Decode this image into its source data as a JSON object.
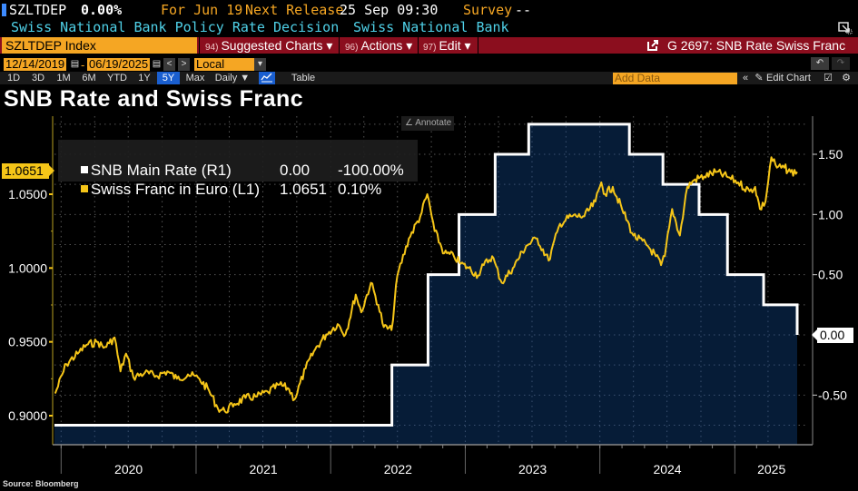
{
  "header": {
    "ticker": "SZLTDEP",
    "value": "0.00%",
    "for_label": "For Jun 19",
    "next_release_label": "Next Release",
    "next_release_value": "25 Sep 09:30",
    "survey_label": "Survey",
    "survey_value": "--",
    "description": "Swiss National Bank Policy Rate Decision",
    "source_name": "Swiss National Bank"
  },
  "commandbar": {
    "security": "SZLTDEP Index",
    "buttons": [
      {
        "num": "94)",
        "label": "Suggested Charts ▾"
      },
      {
        "num": "96)",
        "label": "Actions ▾"
      },
      {
        "num": "97)",
        "label": "Edit ▾"
      }
    ],
    "chart_id": "G 2697: SNB Rate Swiss Franc"
  },
  "daterange": {
    "start": "12/14/2019",
    "end": "06/19/2025",
    "currency": "Local CCY",
    "separator": "-"
  },
  "periods": [
    "1D",
    "3D",
    "1M",
    "6M",
    "YTD",
    "1Y",
    "5Y",
    "Max"
  ],
  "active_period": "5Y",
  "frequency": "Daily ▼",
  "table_label": "Table",
  "add_data_placeholder": "Add Data",
  "edit_chart_label": "Edit Chart",
  "annotate_label": "Annotate",
  "legend": [
    {
      "name": "SNB Main Rate (R1)",
      "last": "0.00",
      "change": "-100.00%",
      "color": "#ffffff"
    },
    {
      "name": "Swiss Franc in Euro (L1)",
      "last": "1.0651",
      "change": "0.10%",
      "color": "#f5c518"
    }
  ],
  "last_left": "1.0651",
  "last_right": "0.00",
  "source": "Source: Bloomberg",
  "colors": {
    "accent": "#f5a623",
    "bar_red": "#8b0e1e",
    "area_fill": "#061d3a",
    "franc_line": "#f5c518",
    "rate_line": "#ffffff"
  },
  "chart_data": {
    "type": "line",
    "title": "SNB Rate and Swiss Franc",
    "x_range": [
      "2019-12-14",
      "2025-06-19"
    ],
    "x_tick_labels": [
      "2020",
      "2021",
      "2022",
      "2023",
      "2024",
      "2025"
    ],
    "left_axis": {
      "label": "Swiss Franc in Euro (L1)",
      "ticks": [
        "0.9000",
        "0.9500",
        "1.0000",
        "1.0500"
      ],
      "range": [
        0.888,
        1.1
      ]
    },
    "right_axis": {
      "label": "SNB Main Rate (R1)",
      "ticks": [
        "-0.50",
        "0.00",
        "0.50",
        "1.00",
        "1.50"
      ],
      "range": [
        -0.82,
        1.87
      ]
    },
    "grid": true,
    "legend_position": "top-left",
    "series": [
      {
        "name": "SNB Main Rate (R1)",
        "axis": "right",
        "style": "step-area",
        "points": [
          [
            "2019-12-14",
            -0.75
          ],
          [
            "2022-06-16",
            -0.25
          ],
          [
            "2022-09-22",
            0.5
          ],
          [
            "2022-12-15",
            1.0
          ],
          [
            "2023-03-23",
            1.5
          ],
          [
            "2023-06-22",
            1.75
          ],
          [
            "2024-03-21",
            1.5
          ],
          [
            "2024-06-20",
            1.25
          ],
          [
            "2024-09-26",
            1.0
          ],
          [
            "2024-12-12",
            0.5
          ],
          [
            "2025-03-20",
            0.25
          ],
          [
            "2025-06-19",
            0.0
          ]
        ]
      },
      {
        "name": "Swiss Franc in Euro (L1)",
        "axis": "left",
        "style": "line",
        "points": [
          [
            "2019-12-16",
            0.915
          ],
          [
            "2020-01-15",
            0.935
          ],
          [
            "2020-02-15",
            0.942
          ],
          [
            "2020-03-10",
            0.948
          ],
          [
            "2020-04-10",
            0.95
          ],
          [
            "2020-04-25",
            0.946
          ],
          [
            "2020-05-10",
            0.949
          ],
          [
            "2020-05-25",
            0.953
          ],
          [
            "2020-06-10",
            0.93
          ],
          [
            "2020-06-25",
            0.942
          ],
          [
            "2020-07-15",
            0.926
          ],
          [
            "2020-08-15",
            0.929
          ],
          [
            "2020-09-15",
            0.927
          ],
          [
            "2020-10-15",
            0.93
          ],
          [
            "2020-11-10",
            0.925
          ],
          [
            "2020-12-10",
            0.928
          ],
          [
            "2021-01-10",
            0.925
          ],
          [
            "2021-02-05",
            0.917
          ],
          [
            "2021-03-01",
            0.905
          ],
          [
            "2021-03-20",
            0.903
          ],
          [
            "2021-04-15",
            0.908
          ],
          [
            "2021-05-15",
            0.912
          ],
          [
            "2021-06-15",
            0.913
          ],
          [
            "2021-07-15",
            0.916
          ],
          [
            "2021-08-15",
            0.921
          ],
          [
            "2021-09-10",
            0.918
          ],
          [
            "2021-09-25",
            0.911
          ],
          [
            "2021-10-25",
            0.932
          ],
          [
            "2021-11-20",
            0.945
          ],
          [
            "2021-12-20",
            0.955
          ],
          [
            "2022-01-20",
            0.962
          ],
          [
            "2022-02-10",
            0.955
          ],
          [
            "2022-03-10",
            0.982
          ],
          [
            "2022-03-25",
            0.97
          ],
          [
            "2022-04-20",
            0.99
          ],
          [
            "2022-05-10",
            0.975
          ],
          [
            "2022-05-25",
            0.96
          ],
          [
            "2022-06-15",
            0.958
          ],
          [
            "2022-07-01",
            0.995
          ],
          [
            "2022-08-01",
            1.02
          ],
          [
            "2022-09-01",
            1.035
          ],
          [
            "2022-09-20",
            1.05
          ],
          [
            "2022-10-10",
            1.025
          ],
          [
            "2022-11-05",
            1.01
          ],
          [
            "2022-12-01",
            1.008
          ],
          [
            "2022-12-20",
            1.003
          ],
          [
            "2023-01-10",
            1.0
          ],
          [
            "2023-02-05",
            0.995
          ],
          [
            "2023-02-20",
            1.002
          ],
          [
            "2023-03-15",
            1.008
          ],
          [
            "2023-04-10",
            0.99
          ],
          [
            "2023-05-10",
            1.0
          ],
          [
            "2023-06-15",
            1.015
          ],
          [
            "2023-07-15",
            1.02
          ],
          [
            "2023-08-15",
            1.005
          ],
          [
            "2023-09-15",
            1.03
          ],
          [
            "2023-10-15",
            1.035
          ],
          [
            "2023-11-20",
            1.035
          ],
          [
            "2023-12-20",
            1.045
          ],
          [
            "2024-01-05",
            1.058
          ],
          [
            "2024-01-15",
            1.05
          ],
          [
            "2024-02-05",
            1.055
          ],
          [
            "2024-03-01",
            1.04
          ],
          [
            "2024-04-01",
            1.022
          ],
          [
            "2024-05-10",
            1.015
          ],
          [
            "2024-06-01",
            1.008
          ],
          [
            "2024-06-15",
            1.002
          ],
          [
            "2024-06-25",
            1.008
          ],
          [
            "2024-07-15",
            1.04
          ],
          [
            "2024-08-05",
            1.022
          ],
          [
            "2024-08-25",
            1.055
          ],
          [
            "2024-09-15",
            1.06
          ],
          [
            "2024-10-10",
            1.062
          ],
          [
            "2024-11-10",
            1.065
          ],
          [
            "2024-12-10",
            1.062
          ],
          [
            "2025-01-10",
            1.058
          ],
          [
            "2025-02-10",
            1.052
          ],
          [
            "2025-02-25",
            1.055
          ],
          [
            "2025-03-10",
            1.04
          ],
          [
            "2025-03-25",
            1.045
          ],
          [
            "2025-04-10",
            1.075
          ],
          [
            "2025-04-25",
            1.068
          ],
          [
            "2025-05-15",
            1.068
          ],
          [
            "2025-06-01",
            1.065
          ],
          [
            "2025-06-19",
            1.0651
          ]
        ]
      }
    ]
  }
}
